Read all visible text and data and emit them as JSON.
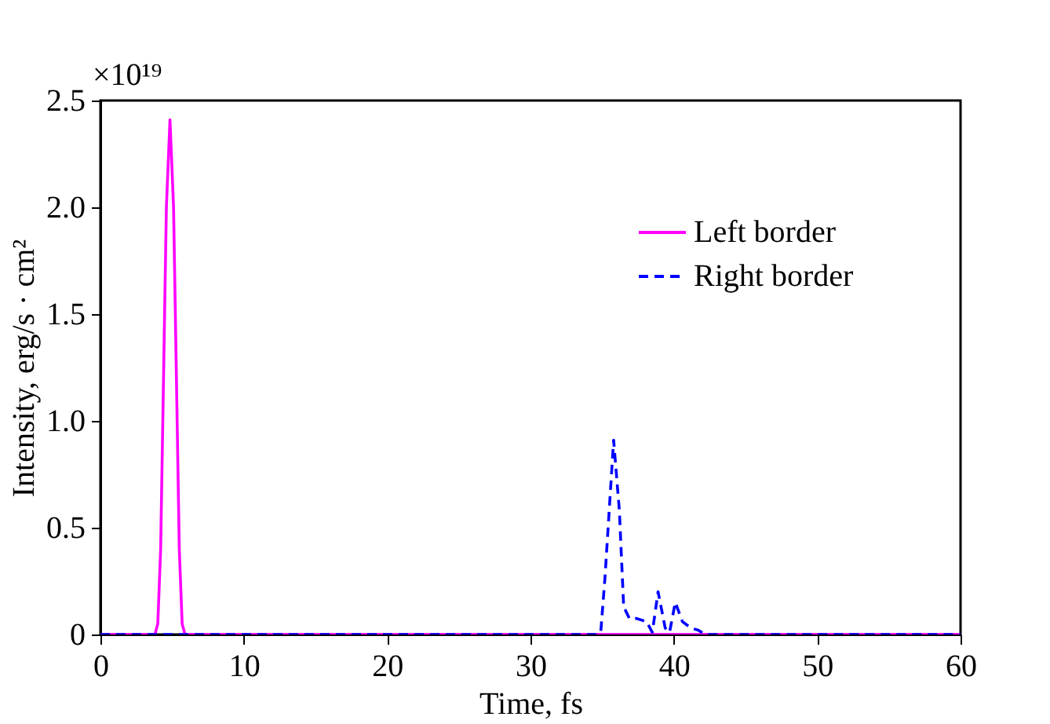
{
  "chart_data": {
    "type": "line",
    "xlabel": "Time, fs",
    "ylabel": "Intensity, erg/s · cm²",
    "annotations": [
      "×10¹⁹"
    ],
    "xlim": [
      0,
      60
    ],
    "xticks": [
      0,
      10,
      20,
      30,
      40,
      50,
      60
    ],
    "ylim": [
      0,
      2.5
    ],
    "yticks": [
      0,
      0.5,
      {
        "value": 1,
        "label": "1.0"
      },
      1.5,
      {
        "value": 2,
        "label": "2.0"
      },
      2.5
    ],
    "grid": false,
    "legend": "top right",
    "marker": "none",
    "series": [
      {
        "name": "Left border",
        "color": "#ff00ff",
        "line_style": "solid",
        "x": [
          0,
          3.8,
          4.0,
          4.2,
          4.4,
          4.6,
          4.85,
          5.1,
          5.3,
          5.5,
          5.7,
          5.9,
          60
        ],
        "values": [
          0,
          0,
          0.05,
          0.4,
          1.2,
          2.0,
          2.41,
          2.0,
          1.2,
          0.4,
          0.05,
          0,
          0
        ]
      },
      {
        "name": "Right border",
        "color": "#0000ff",
        "line_style": "dashed",
        "x": [
          0,
          34.6,
          34.9,
          35.2,
          35.8,
          36.2,
          36.5,
          36.9,
          37.4,
          38.1,
          38.5,
          38.9,
          39.4,
          39.7,
          40.1,
          40.6,
          41.2,
          41.7,
          42.2,
          60
        ],
        "values": [
          0,
          0,
          0.01,
          0.27,
          0.91,
          0.58,
          0.13,
          0.075,
          0.075,
          0.06,
          0.01,
          0.2,
          0.03,
          0.01,
          0.15,
          0.06,
          0.03,
          0.02,
          0,
          0
        ]
      }
    ]
  }
}
